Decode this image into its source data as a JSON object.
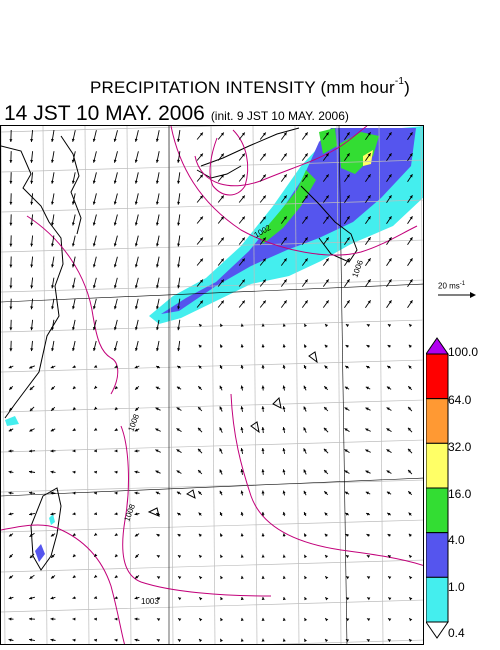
{
  "title": {
    "line1": "PRECIPITATION INTENSITY (mm hour",
    "unit_exponent": "-1",
    "line1_close": ")",
    "valid_time": "14 JST 10 MAY. 2006",
    "init_time": "(init. 9 JST 10 MAY. 2006)"
  },
  "isobar_labels": [
    "1002",
    "1006",
    "1008",
    "1008",
    "1003"
  ],
  "wind_scale": {
    "value": "20 ms",
    "exponent": "-1"
  },
  "colorbar": {
    "levels": [
      "100.0",
      "64.0",
      "32.0",
      "16.0",
      "4.0",
      "1.0",
      "0.4"
    ],
    "colors": [
      "#ff0000",
      "#ff9933",
      "#ffff66",
      "#33dd33",
      "#5555ee",
      "#44eeee",
      "#ffffff"
    ],
    "over_color": "#b100f0"
  },
  "colors": {
    "isobar": "#c2007a",
    "grid": "#bdbdbd",
    "coast": "#000000",
    "arrow": "#000000"
  }
}
